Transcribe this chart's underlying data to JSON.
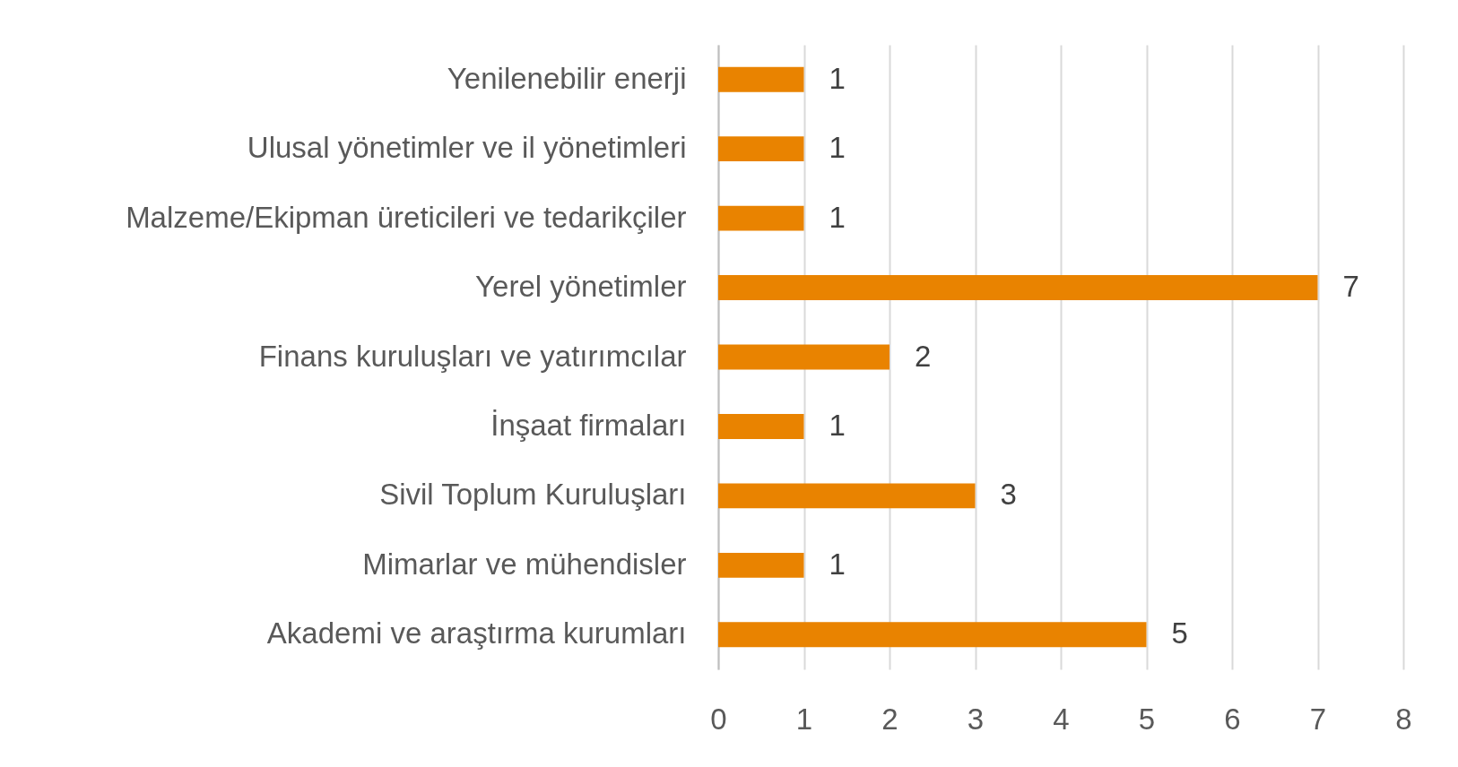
{
  "chart_data": {
    "type": "bar",
    "orientation": "horizontal",
    "categories": [
      "Yenilenebilir enerji",
      "Ulusal yönetimler ve il yönetimleri",
      "Malzeme/Ekipman üreticileri ve tedarikçiler",
      "Yerel yönetimler",
      "Finans kuruluşları ve yatırımcılar",
      "İnşaat firmaları",
      "Sivil Toplum Kuruluşları",
      "Mimarlar ve mühendisler",
      "Akademi ve araştırma kurumları"
    ],
    "values": [
      1,
      1,
      1,
      7,
      2,
      1,
      3,
      1,
      5
    ],
    "color": "#e98300",
    "xlim": [
      0,
      8
    ],
    "xticks": [
      0,
      1,
      2,
      3,
      4,
      5,
      6,
      7,
      8
    ],
    "grid": "x",
    "data_labels": true
  }
}
